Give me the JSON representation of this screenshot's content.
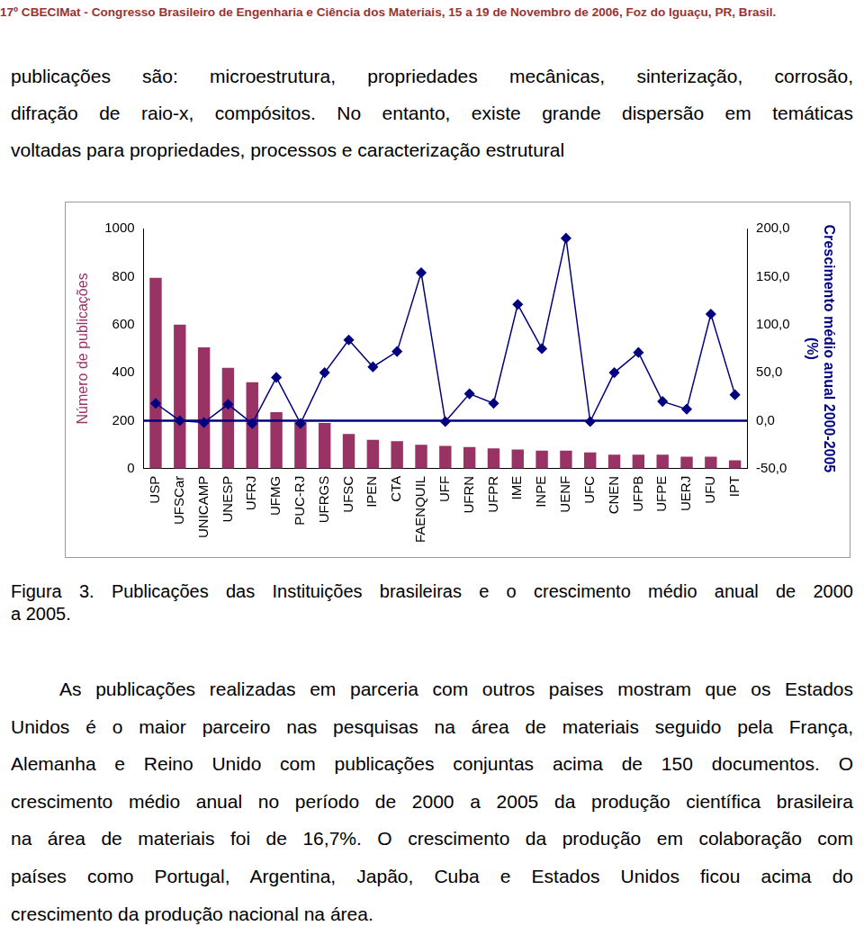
{
  "header": "17º CBECIMat - Congresso Brasileiro de Engenharia e Ciência dos Materiais, 15 a 19 de Novembro de 2006, Foz do Iguaçu, PR, Brasil.",
  "paragraph_1": [
    "publicações são: microestrutura, propriedades mecânicas, sinterização, corrosão,",
    "difração de raio-x, compósitos. No entanto, existe grande dispersão em temáticas",
    "voltadas para propriedades, processos e caracterização estrutural"
  ],
  "chart_data": {
    "type": "bar",
    "y_label": "Número de publicações",
    "y2_label": [
      "Crescimento médio anual 2000-2005",
      "(%)"
    ],
    "categories": [
      "USP",
      "UFSCar",
      "UNICAMP",
      "UNESP",
      "UFRJ",
      "UFMG",
      "PUC-RJ",
      "UFRGS",
      "UFSC",
      "IPEN",
      "CTA",
      "FAENQUIL",
      "UFF",
      "UFRN",
      "UFPR",
      "IME",
      "INPE",
      "UENF",
      "UFC",
      "CNEN",
      "UFPB",
      "UFPE",
      "UERJ",
      "UFU",
      "IPT"
    ],
    "series": [
      {
        "type": "bar",
        "color": "#993366",
        "values": [
          795,
          600,
          505,
          420,
          360,
          235,
          195,
          190,
          145,
          120,
          115,
          100,
          95,
          90,
          85,
          80,
          75,
          75,
          68,
          58,
          58,
          58,
          50,
          50,
          35
        ]
      },
      {
        "type": "line",
        "axis": "y2",
        "color": "#000080",
        "marker": "diamond",
        "values": [
          18,
          0,
          -2,
          17,
          -3,
          45,
          -3,
          50,
          84,
          56,
          72,
          154,
          -1,
          28,
          18,
          121,
          75,
          190,
          -1,
          50,
          71,
          20,
          12,
          111,
          27
        ]
      }
    ],
    "reference_lines": [
      {
        "axis": "y2",
        "value": 0,
        "color": "#000080"
      }
    ],
    "ylim": [
      0,
      1000
    ],
    "yticks": [
      0,
      200,
      400,
      600,
      800,
      1000
    ],
    "y2lim": [
      -50,
      200
    ],
    "y2ticks": [
      {
        "value": -50,
        "label": "-50,0"
      },
      {
        "value": 0,
        "label": "0,0"
      },
      {
        "value": 50,
        "label": "50,0"
      },
      {
        "value": 100,
        "label": "100,0"
      },
      {
        "value": 150,
        "label": "150,0"
      },
      {
        "value": 200,
        "label": "200,0"
      }
    ],
    "grid": false
  },
  "caption": [
    "Figura 3. Publicações das Instituições brasileiras e o crescimento médio anual de 2000",
    "a 2005."
  ],
  "paragraph_2": [
    "As publicações realizadas em parceria com outros paises mostram que os Estados",
    "Unidos é o maior parceiro nas pesquisas na área de materiais seguido pela França,",
    "Alemanha e Reino Unido com publicações conjuntas acima de 150 documentos. O",
    "crescimento médio anual no período de 2000 a 2005 da produção científica brasileira",
    "na área de materiais foi de 16,7%. O crescimento da produção em colaboração com",
    "países como Portugal, Argentina, Japão, Cuba e Estados Unidos ficou acima do",
    "crescimento da produção nacional na área."
  ]
}
